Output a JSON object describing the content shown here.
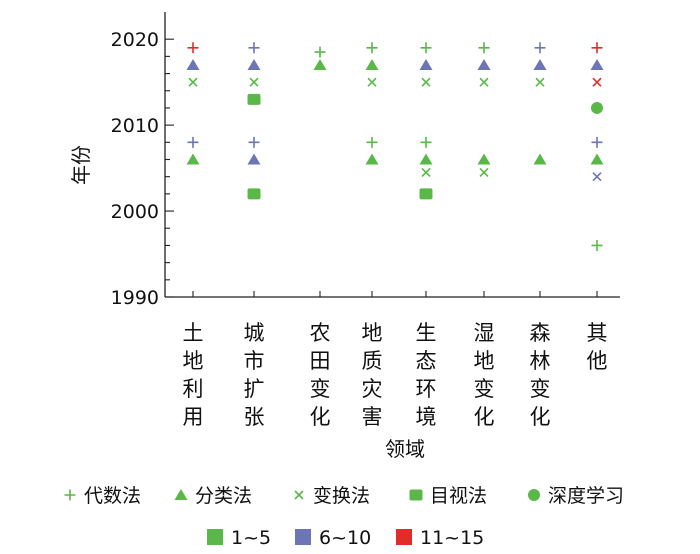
{
  "chart_data": {
    "type": "scatter",
    "xlabel": "领域",
    "ylabel": "年份",
    "ylim": [
      1990,
      2022
    ],
    "yticks": [
      1990,
      2000,
      2010,
      2020
    ],
    "categories": [
      "土地利用",
      "城市扩张",
      "农田变化",
      "地质灾害",
      "生态环境",
      "湿地变化",
      "森林变化",
      "其他"
    ],
    "method_legend": [
      {
        "method": "algebra",
        "label": "代数法",
        "marker": "plus"
      },
      {
        "method": "classification",
        "label": "分类法",
        "marker": "triangle"
      },
      {
        "method": "transform",
        "label": "变换法",
        "marker": "cross"
      },
      {
        "method": "visual",
        "label": "目视法",
        "marker": "square"
      },
      {
        "method": "deep",
        "label": "深度学习",
        "marker": "circle"
      }
    ],
    "count_legend": [
      {
        "bin": 1,
        "label": "1~5",
        "color": "#59b847"
      },
      {
        "bin": 2,
        "label": "6~10",
        "color": "#6c75b6"
      },
      {
        "bin": 3,
        "label": "11~15",
        "color": "#e22b2b"
      }
    ],
    "points": [
      {
        "category": "土地利用",
        "year": 2019,
        "method": "algebra",
        "bin": 3
      },
      {
        "category": "土地利用",
        "year": 2017,
        "method": "classification",
        "bin": 2
      },
      {
        "category": "土地利用",
        "year": 2015,
        "method": "transform",
        "bin": 1
      },
      {
        "category": "土地利用",
        "year": 2008,
        "method": "algebra",
        "bin": 2
      },
      {
        "category": "土地利用",
        "year": 2006,
        "method": "classification",
        "bin": 1
      },
      {
        "category": "城市扩张",
        "year": 2019,
        "method": "algebra",
        "bin": 2
      },
      {
        "category": "城市扩张",
        "year": 2017,
        "method": "classification",
        "bin": 2
      },
      {
        "category": "城市扩张",
        "year": 2015,
        "method": "transform",
        "bin": 1
      },
      {
        "category": "城市扩张",
        "year": 2013,
        "method": "visual",
        "bin": 1
      },
      {
        "category": "城市扩张",
        "year": 2008,
        "method": "algebra",
        "bin": 2
      },
      {
        "category": "城市扩张",
        "year": 2006,
        "method": "classification",
        "bin": 2
      },
      {
        "category": "城市扩张",
        "year": 2002,
        "method": "visual",
        "bin": 1
      },
      {
        "category": "农田变化",
        "year": 2018.5,
        "method": "algebra",
        "bin": 1
      },
      {
        "category": "农田变化",
        "year": 2017,
        "method": "classification",
        "bin": 1
      },
      {
        "category": "地质灾害",
        "year": 2019,
        "method": "algebra",
        "bin": 1
      },
      {
        "category": "地质灾害",
        "year": 2017,
        "method": "classification",
        "bin": 1
      },
      {
        "category": "地质灾害",
        "year": 2015,
        "method": "transform",
        "bin": 1
      },
      {
        "category": "地质灾害",
        "year": 2008,
        "method": "algebra",
        "bin": 1
      },
      {
        "category": "地质灾害",
        "year": 2006,
        "method": "classification",
        "bin": 1
      },
      {
        "category": "生态环境",
        "year": 2019,
        "method": "algebra",
        "bin": 1
      },
      {
        "category": "生态环境",
        "year": 2017,
        "method": "classification",
        "bin": 2
      },
      {
        "category": "生态环境",
        "year": 2015,
        "method": "transform",
        "bin": 1
      },
      {
        "category": "生态环境",
        "year": 2008,
        "method": "algebra",
        "bin": 1
      },
      {
        "category": "生态环境",
        "year": 2006,
        "method": "classification",
        "bin": 1
      },
      {
        "category": "生态环境",
        "year": 2004.5,
        "method": "transform",
        "bin": 1
      },
      {
        "category": "生态环境",
        "year": 2002,
        "method": "visual",
        "bin": 1
      },
      {
        "category": "湿地变化",
        "year": 2019,
        "method": "algebra",
        "bin": 1
      },
      {
        "category": "湿地变化",
        "year": 2017,
        "method": "classification",
        "bin": 2
      },
      {
        "category": "湿地变化",
        "year": 2015,
        "method": "transform",
        "bin": 1
      },
      {
        "category": "湿地变化",
        "year": 2006,
        "method": "classification",
        "bin": 1
      },
      {
        "category": "湿地变化",
        "year": 2004.5,
        "method": "transform",
        "bin": 1
      },
      {
        "category": "森林变化",
        "year": 2019,
        "method": "algebra",
        "bin": 2
      },
      {
        "category": "森林变化",
        "year": 2017,
        "method": "classification",
        "bin": 2
      },
      {
        "category": "森林变化",
        "year": 2015,
        "method": "transform",
        "bin": 1
      },
      {
        "category": "森林变化",
        "year": 2006,
        "method": "classification",
        "bin": 1
      },
      {
        "category": "其他",
        "year": 2019,
        "method": "algebra",
        "bin": 3
      },
      {
        "category": "其他",
        "year": 2017,
        "method": "classification",
        "bin": 2
      },
      {
        "category": "其他",
        "year": 2015,
        "method": "transform",
        "bin": 3
      },
      {
        "category": "其他",
        "year": 2012,
        "method": "deep",
        "bin": 1
      },
      {
        "category": "其他",
        "year": 2008,
        "method": "algebra",
        "bin": 2
      },
      {
        "category": "其他",
        "year": 2006,
        "method": "classification",
        "bin": 1
      },
      {
        "category": "其他",
        "year": 2004,
        "method": "transform",
        "bin": 2
      },
      {
        "category": "其他",
        "year": 1996,
        "method": "algebra",
        "bin": 1
      }
    ]
  }
}
